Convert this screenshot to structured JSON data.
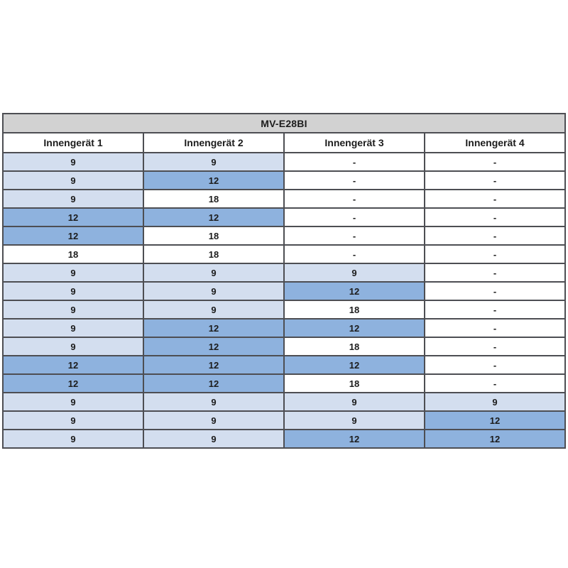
{
  "table": {
    "title": "MV-E28BI",
    "columns": [
      "Innengerät 1",
      "Innengerät 2",
      "Innengerät 3",
      "Innengerät 4"
    ],
    "rows": [
      [
        {
          "v": "9",
          "c": "light"
        },
        {
          "v": "9",
          "c": "light"
        },
        {
          "v": "-",
          "c": "white"
        },
        {
          "v": "-",
          "c": "white"
        }
      ],
      [
        {
          "v": "9",
          "c": "light"
        },
        {
          "v": "12",
          "c": "medium"
        },
        {
          "v": "-",
          "c": "white"
        },
        {
          "v": "-",
          "c": "white"
        }
      ],
      [
        {
          "v": "9",
          "c": "light"
        },
        {
          "v": "18",
          "c": "white"
        },
        {
          "v": "-",
          "c": "white"
        },
        {
          "v": "-",
          "c": "white"
        }
      ],
      [
        {
          "v": "12",
          "c": "medium"
        },
        {
          "v": "12",
          "c": "medium"
        },
        {
          "v": "-",
          "c": "white"
        },
        {
          "v": "-",
          "c": "white"
        }
      ],
      [
        {
          "v": "12",
          "c": "medium"
        },
        {
          "v": "18",
          "c": "white"
        },
        {
          "v": "-",
          "c": "white"
        },
        {
          "v": "-",
          "c": "white"
        }
      ],
      [
        {
          "v": "18",
          "c": "white"
        },
        {
          "v": "18",
          "c": "white"
        },
        {
          "v": "-",
          "c": "white"
        },
        {
          "v": "-",
          "c": "white"
        }
      ],
      [
        {
          "v": "9",
          "c": "light"
        },
        {
          "v": "9",
          "c": "light"
        },
        {
          "v": "9",
          "c": "light"
        },
        {
          "v": "-",
          "c": "white"
        }
      ],
      [
        {
          "v": "9",
          "c": "light"
        },
        {
          "v": "9",
          "c": "light"
        },
        {
          "v": "12",
          "c": "medium"
        },
        {
          "v": "-",
          "c": "white"
        }
      ],
      [
        {
          "v": "9",
          "c": "light"
        },
        {
          "v": "9",
          "c": "light"
        },
        {
          "v": "18",
          "c": "white"
        },
        {
          "v": "-",
          "c": "white"
        }
      ],
      [
        {
          "v": "9",
          "c": "light"
        },
        {
          "v": "12",
          "c": "medium"
        },
        {
          "v": "12",
          "c": "medium"
        },
        {
          "v": "-",
          "c": "white"
        }
      ],
      [
        {
          "v": "9",
          "c": "light"
        },
        {
          "v": "12",
          "c": "medium"
        },
        {
          "v": "18",
          "c": "white"
        },
        {
          "v": "-",
          "c": "white"
        }
      ],
      [
        {
          "v": "12",
          "c": "medium"
        },
        {
          "v": "12",
          "c": "medium"
        },
        {
          "v": "12",
          "c": "medium"
        },
        {
          "v": "-",
          "c": "white"
        }
      ],
      [
        {
          "v": "12",
          "c": "medium"
        },
        {
          "v": "12",
          "c": "medium"
        },
        {
          "v": "18",
          "c": "white"
        },
        {
          "v": "-",
          "c": "white"
        }
      ],
      [
        {
          "v": "9",
          "c": "light"
        },
        {
          "v": "9",
          "c": "light"
        },
        {
          "v": "9",
          "c": "light"
        },
        {
          "v": "9",
          "c": "light"
        }
      ],
      [
        {
          "v": "9",
          "c": "light"
        },
        {
          "v": "9",
          "c": "light"
        },
        {
          "v": "9",
          "c": "light"
        },
        {
          "v": "12",
          "c": "medium"
        }
      ],
      [
        {
          "v": "9",
          "c": "light"
        },
        {
          "v": "9",
          "c": "light"
        },
        {
          "v": "12",
          "c": "medium"
        },
        {
          "v": "12",
          "c": "medium"
        }
      ]
    ]
  },
  "colors": {
    "light_blue": "#d3deef",
    "medium_blue": "#8eb2de",
    "title_bg": "#d2d2d2",
    "title_text": "#1778c4",
    "border": "#4d4e53",
    "text": "#1c1c1c"
  }
}
